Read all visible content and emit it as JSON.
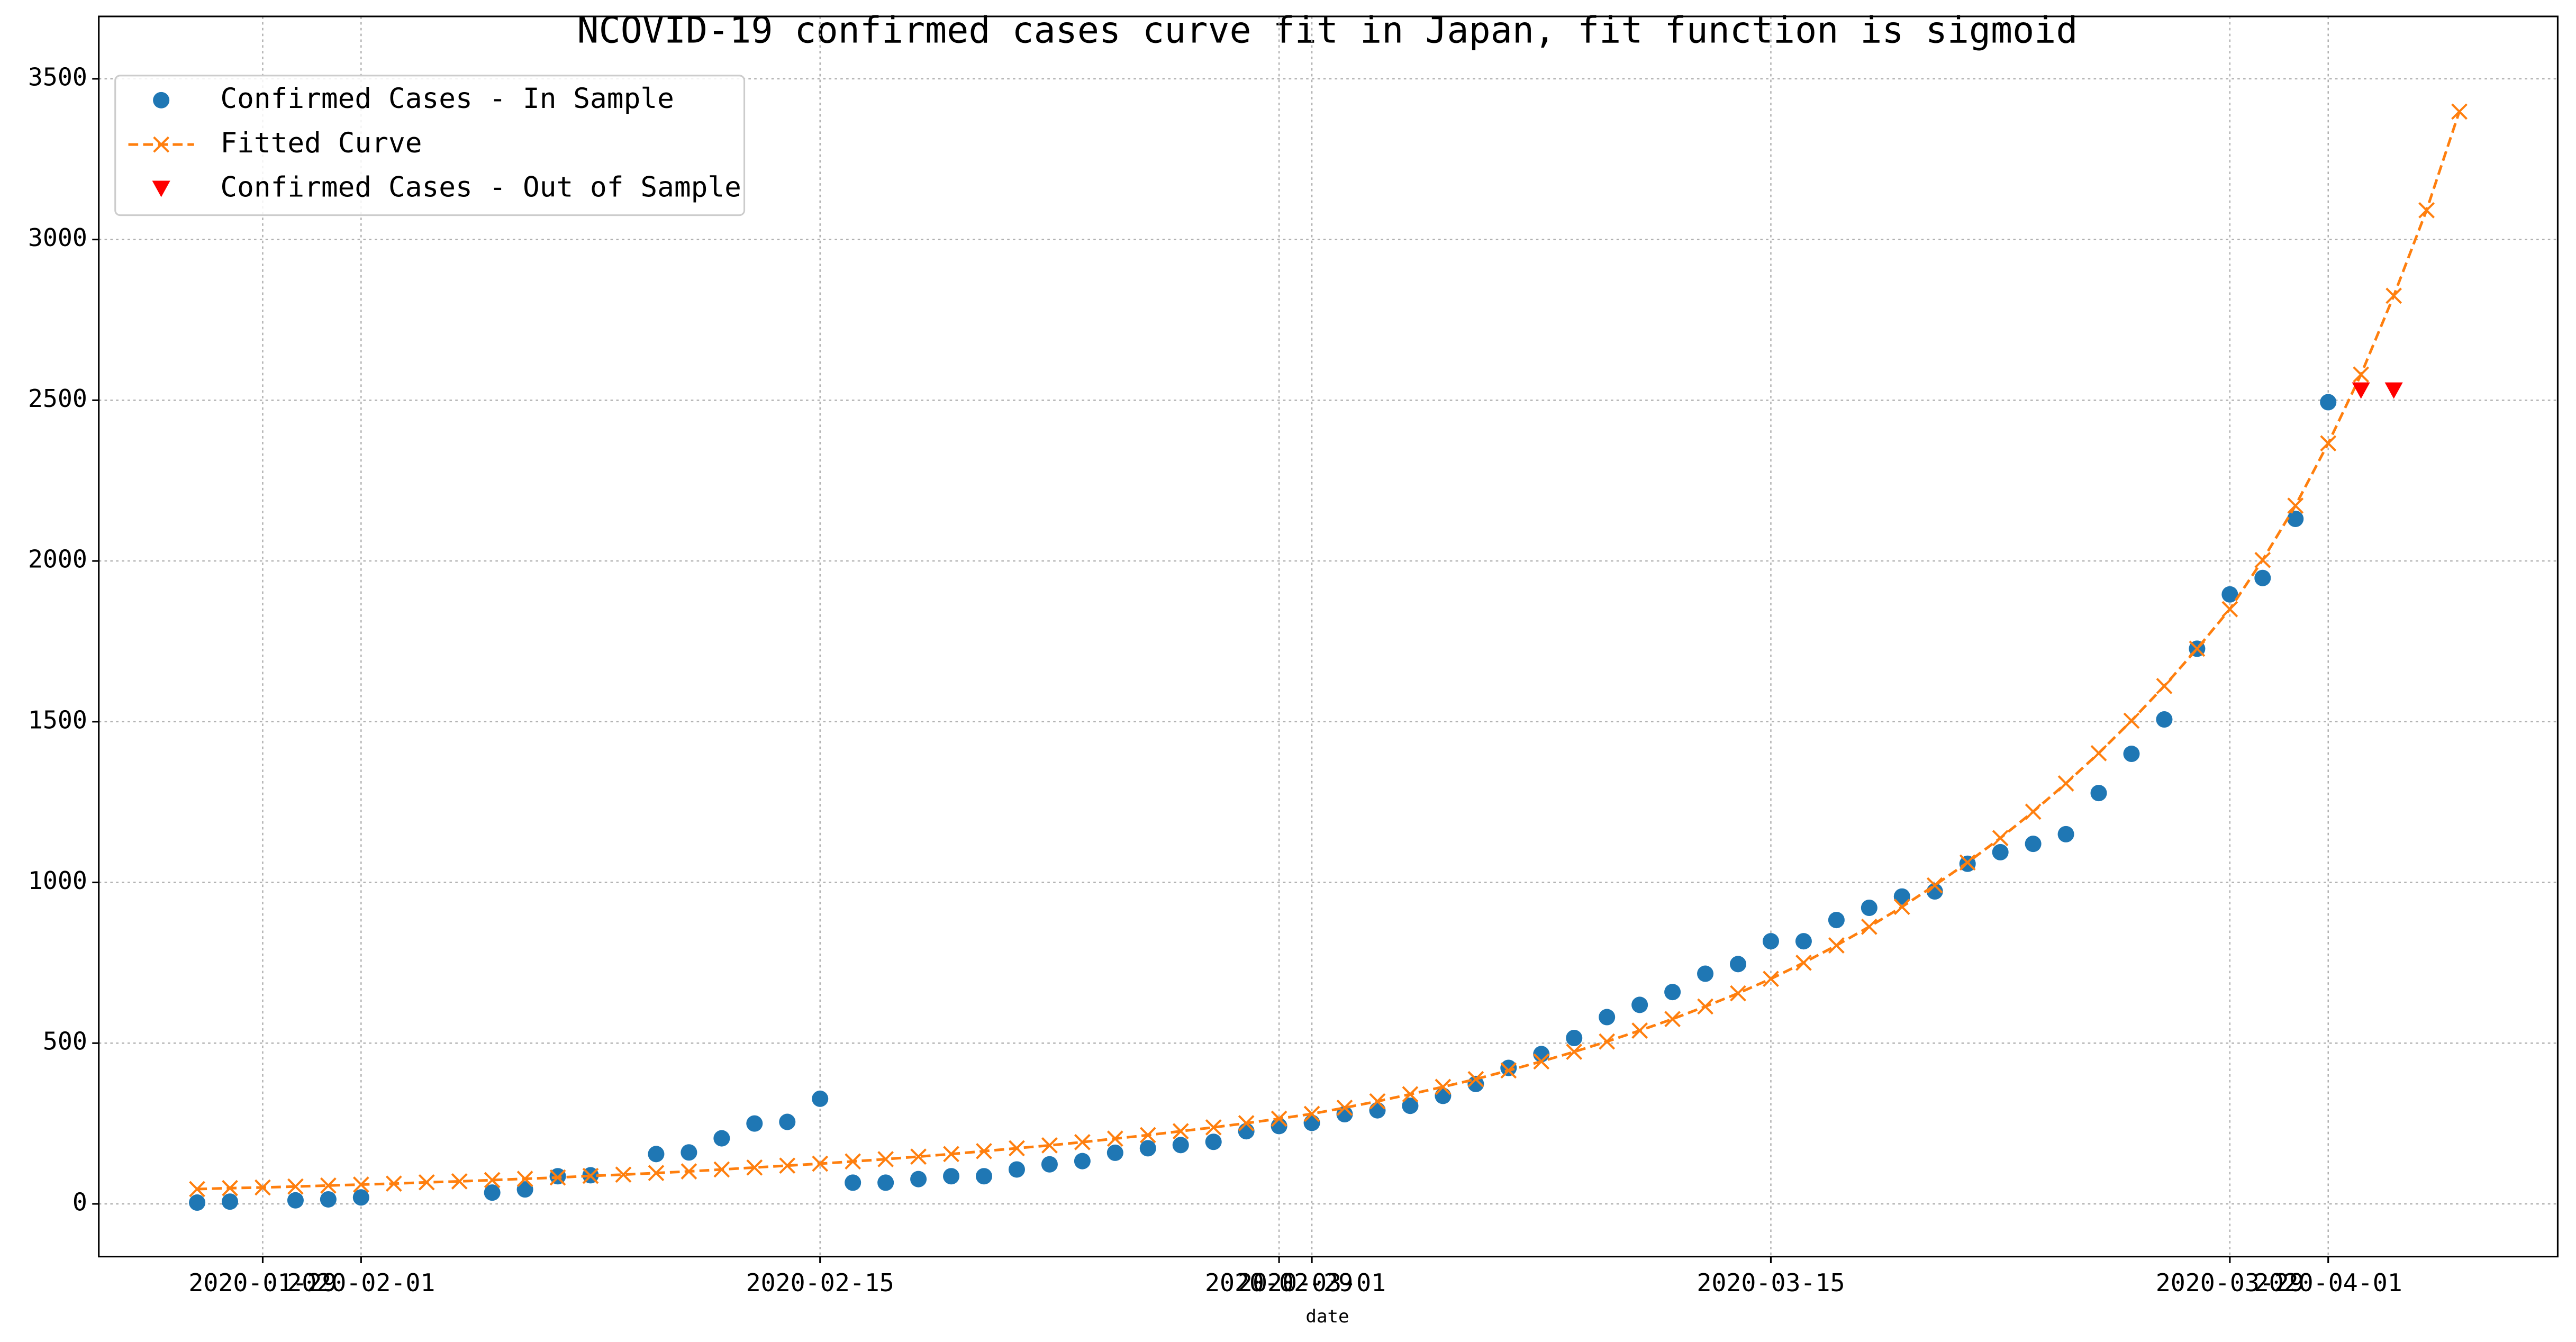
{
  "chart_data": {
    "type": "line",
    "title": "NCOVID-19 confirmed cases curve fit in Japan, fit function is sigmoid",
    "xlabel": "date",
    "xlim": [
      "2020-01-24",
      "2020-04-08"
    ],
    "xticks": [
      "2020-01-29",
      "2020-02-01",
      "2020-02-15",
      "2020-02-29",
      "2020-03-01",
      "2020-03-15",
      "2020-03-29",
      "2020-04-01"
    ],
    "ylim": [
      -164,
      3694
    ],
    "yticks": [
      0,
      500,
      1000,
      1500,
      2000,
      2500,
      3000,
      3500
    ],
    "grid": true,
    "legend": "upper left",
    "series": [
      {
        "name": "Confirmed Cases - In Sample",
        "color": "#1f77b4",
        "mode": "markers",
        "marker": "circle",
        "x": [
          "2020-01-27",
          "2020-01-28",
          "2020-01-30",
          "2020-01-31",
          "2020-02-01",
          "2020-02-05",
          "2020-02-06",
          "2020-02-07",
          "2020-02-08",
          "2020-02-10",
          "2020-02-11",
          "2020-02-12",
          "2020-02-13",
          "2020-02-14",
          "2020-02-15",
          "2020-02-16",
          "2020-02-17",
          "2020-02-18",
          "2020-02-19",
          "2020-02-20",
          "2020-02-21",
          "2020-02-22",
          "2020-02-23",
          "2020-02-24",
          "2020-02-25",
          "2020-02-26",
          "2020-02-27",
          "2020-02-28",
          "2020-02-29",
          "2020-03-01",
          "2020-03-02",
          "2020-03-03",
          "2020-03-04",
          "2020-03-05",
          "2020-03-06",
          "2020-03-07",
          "2020-03-08",
          "2020-03-09",
          "2020-03-10",
          "2020-03-11",
          "2020-03-12",
          "2020-03-13",
          "2020-03-14",
          "2020-03-15",
          "2020-03-16",
          "2020-03-17",
          "2020-03-18",
          "2020-03-19",
          "2020-03-20",
          "2020-03-21",
          "2020-03-22",
          "2020-03-23",
          "2020-03-24",
          "2020-03-25",
          "2020-03-26",
          "2020-03-27",
          "2020-03-28",
          "2020-03-29",
          "2020-03-30",
          "2020-03-31",
          "2020-04-01"
        ],
        "values": [
          4,
          7,
          11,
          14,
          20,
          35,
          45,
          86,
          89,
          155,
          160,
          204,
          250,
          255,
          327,
          66,
          66,
          77,
          86,
          86,
          107,
          123,
          133,
          159,
          173,
          183,
          193,
          226,
          242,
          252,
          279,
          291,
          305,
          336,
          373,
          423,
          466,
          516,
          581,
          619,
          659,
          716,
          746,
          817,
          817,
          883,
          921,
          956,
          972,
          1058,
          1094,
          1120,
          1150,
          1278,
          1400,
          1507,
          1727,
          1896,
          1947,
          2131,
          2494
        ]
      },
      {
        "name": "Fitted Curve",
        "color": "#ff7f0e",
        "mode": "lines+markers",
        "marker": "x",
        "dash": "dashed",
        "x": [
          "2020-01-27",
          "2020-01-28",
          "2020-01-29",
          "2020-01-30",
          "2020-01-31",
          "2020-02-01",
          "2020-02-02",
          "2020-02-03",
          "2020-02-04",
          "2020-02-05",
          "2020-02-06",
          "2020-02-07",
          "2020-02-08",
          "2020-02-09",
          "2020-02-10",
          "2020-02-11",
          "2020-02-12",
          "2020-02-13",
          "2020-02-14",
          "2020-02-15",
          "2020-02-16",
          "2020-02-17",
          "2020-02-18",
          "2020-02-19",
          "2020-02-20",
          "2020-02-21",
          "2020-02-22",
          "2020-02-23",
          "2020-02-24",
          "2020-02-25",
          "2020-02-26",
          "2020-02-27",
          "2020-02-28",
          "2020-02-29",
          "2020-03-01",
          "2020-03-02",
          "2020-03-03",
          "2020-03-04",
          "2020-03-05",
          "2020-03-06",
          "2020-03-07",
          "2020-03-08",
          "2020-03-09",
          "2020-03-10",
          "2020-03-11",
          "2020-03-12",
          "2020-03-13",
          "2020-03-14",
          "2020-03-15",
          "2020-03-16",
          "2020-03-17",
          "2020-03-18",
          "2020-03-19",
          "2020-03-20",
          "2020-03-21",
          "2020-03-22",
          "2020-03-23",
          "2020-03-24",
          "2020-03-25",
          "2020-03-26",
          "2020-03-27",
          "2020-03-28",
          "2020-03-29",
          "2020-03-30",
          "2020-03-31",
          "2020-04-01",
          "2020-04-02",
          "2020-04-03",
          "2020-04-04",
          "2020-04-05"
        ],
        "values": [
          46,
          49,
          51,
          54,
          57,
          60,
          63,
          67,
          70,
          74,
          78,
          82,
          87,
          91,
          96,
          101,
          107,
          113,
          119,
          125,
          132,
          139,
          147,
          155,
          164,
          173,
          182,
          192,
          203,
          214,
          226,
          238,
          251,
          265,
          280,
          299,
          319,
          341,
          364,
          388,
          415,
          443,
          473,
          505,
          539,
          575,
          614,
          655,
          700,
          750,
          804,
          862,
          924,
          991,
          1062,
          1138,
          1220,
          1308,
          1402,
          1503,
          1611,
          1727,
          1850,
          2003,
          2172,
          2366,
          2580,
          2825,
          3091,
          3398
        ]
      },
      {
        "name": "Confirmed Cases - Out of Sample",
        "color": "#ff0000",
        "mode": "markers",
        "marker": "triangle-down",
        "x": [
          "2020-04-02",
          "2020-04-03"
        ],
        "values": [
          2530,
          2530
        ]
      }
    ]
  }
}
